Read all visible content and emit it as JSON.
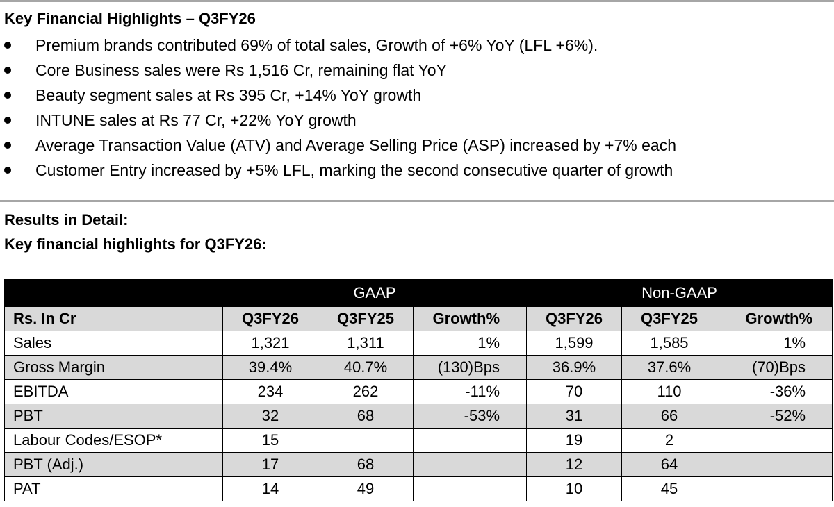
{
  "highlights": {
    "title": "Key Financial Highlights – Q3FY26",
    "bullets": [
      "Premium brands contributed 69% of total sales, Growth of +6% YoY (LFL +6%).",
      "Core Business sales were Rs 1,516 Cr, remaining flat YoY",
      "Beauty segment sales at Rs 395 Cr, +14% YoY growth",
      "INTUNE sales at Rs 77 Cr, +22% YoY growth",
      "Average Transaction Value (ATV) and Average Selling Price (ASP) increased by +7% each",
      "Customer Entry increased by +5% LFL, marking the second consecutive quarter of growth"
    ]
  },
  "results": {
    "title": "Results in Detail:",
    "subtitle": "Key financial highlights for Q3FY26:"
  },
  "table": {
    "groups": [
      "GAAP",
      "Non-GAAP"
    ],
    "headers": [
      "Rs. In Cr",
      "Q3FY26",
      "Q3FY25",
      "Growth%",
      "Q3FY26",
      "Q3FY25",
      "Growth%"
    ],
    "rows": [
      [
        "Sales",
        "1,321",
        "1,311",
        "1%",
        "1,599",
        "1,585",
        "1%"
      ],
      [
        "Gross Margin",
        "39.4%",
        "40.7%",
        "(130)Bps",
        "36.9%",
        "37.6%",
        "(70)Bps"
      ],
      [
        "EBITDA",
        "234",
        "262",
        "-11%",
        "70",
        "110",
        "-36%"
      ],
      [
        "PBT",
        "32",
        "68",
        "-53%",
        "31",
        "66",
        "-52%"
      ],
      [
        "Labour Codes/ESOP*",
        "15",
        "",
        "",
        "19",
        "2",
        ""
      ],
      [
        "PBT (Adj.)",
        "17",
        "68",
        "",
        "12",
        "64",
        ""
      ],
      [
        "PAT",
        "14",
        "49",
        "",
        "10",
        "45",
        ""
      ]
    ]
  }
}
